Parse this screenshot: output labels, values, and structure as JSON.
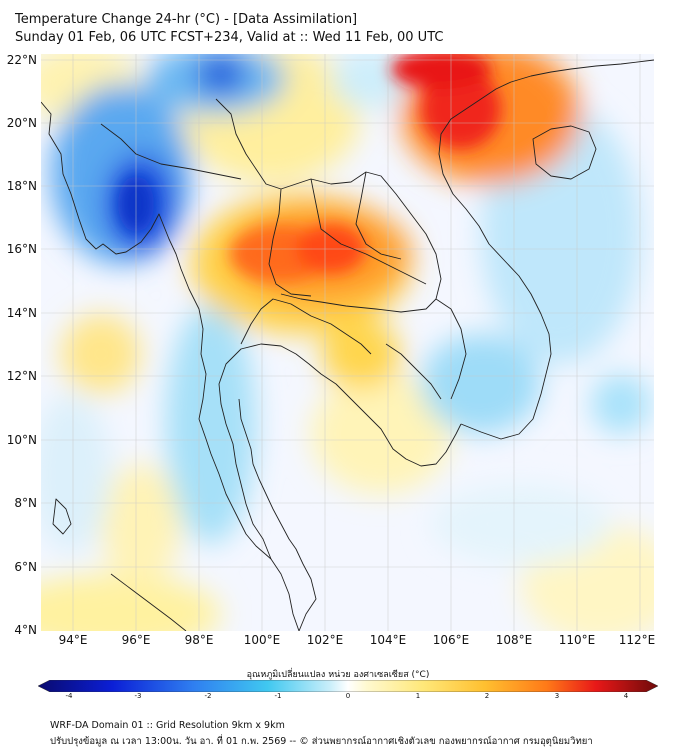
{
  "header": {
    "title_line1": "Temperature Change 24-hr (°C) - [Data Assimilation]",
    "title_line2": "Sunday 01 Feb, 06 UTC FCST+234, Valid at :: Wed 11 Feb, 00 UTC"
  },
  "map": {
    "lat_labels": [
      "22°N",
      "20°N",
      "18°N",
      "16°N",
      "14°N",
      "12°N",
      "10°N",
      "8°N",
      "6°N",
      "4°N"
    ],
    "lon_labels": [
      "94°E",
      "96°E",
      "98°E",
      "100°E",
      "102°E",
      "104°E",
      "106°E",
      "108°E",
      "110°E",
      "112°E"
    ],
    "lat_range": [
      4,
      22.3
    ],
    "lon_range": [
      93,
      112.4
    ]
  },
  "colorbar": {
    "title": "อุณหภูมิเปลี่ยนแปลง หน่วย องศาเซลเซียส (°C)",
    "ticks": [
      "-4",
      "-3",
      "-2",
      "-1",
      "0",
      "1",
      "2",
      "3",
      "4"
    ],
    "min": -4,
    "max": 4
  },
  "footer": {
    "line1": "WRF-DA Domain 01 :: Grid Resolution 9km x 9km",
    "line2": "ปรับปรุงข้อมูล ณ เวลา 13:00น. วัน อา. ที่ 01 ก.พ. 2569 -- © ส่วนพยากรณ์อากาศเชิงตัวเลข กองพยากรณ์อากาศ กรมอุตุนิยมวิทยา"
  }
}
